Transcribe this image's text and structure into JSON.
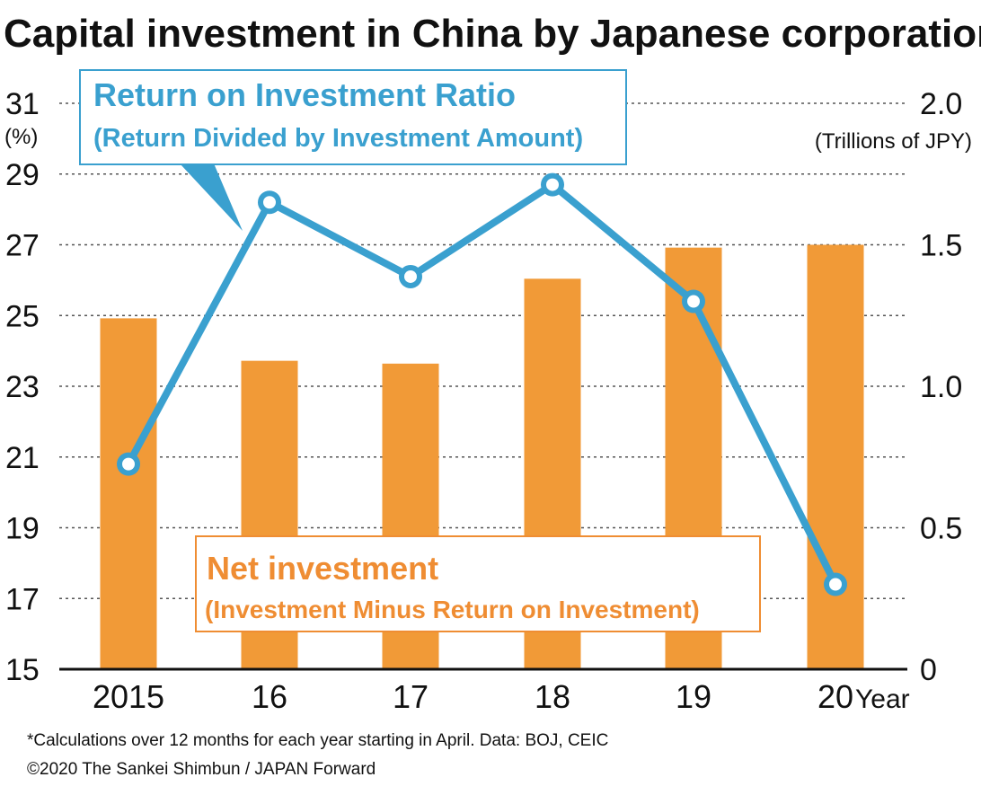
{
  "title": "Capital investment in China by Japanese corporations",
  "chart_data": {
    "type": "bar+line",
    "categories": [
      "2015",
      "16",
      "17",
      "18",
      "19",
      "20"
    ],
    "x_suffix": "Year",
    "series": [
      {
        "name": "Net investment",
        "name_detail": "(Investment Minus Return on Investment)",
        "type": "bar",
        "axis": "right",
        "values": [
          1.24,
          1.09,
          1.08,
          1.38,
          1.49,
          1.5
        ],
        "color": "#f19a37"
      },
      {
        "name": "Return on Investment Ratio",
        "name_detail": "(Return Divided by Investment Amount)",
        "type": "line",
        "axis": "left",
        "values": [
          20.8,
          28.2,
          26.1,
          28.7,
          25.4,
          17.4
        ],
        "color": "#3aa0cf"
      }
    ],
    "y_left": {
      "unit": "(%)",
      "range": [
        15,
        31
      ],
      "ticks": [
        "15",
        "17",
        "19",
        "21",
        "23",
        "25",
        "27",
        "29",
        "31"
      ]
    },
    "y_right": {
      "unit": "(Trillions of JPY)",
      "range": [
        0,
        2.0
      ],
      "ticks": [
        "0",
        "0.5",
        "1.0",
        "1.5",
        "2.0"
      ]
    },
    "grid": "dashed horizontal"
  },
  "footnote": "*Calculations over 12 months for each year starting in April.  Data: BOJ, CEIC",
  "copyright": "©2020 The Sankei Shimbun / JAPAN Forward"
}
